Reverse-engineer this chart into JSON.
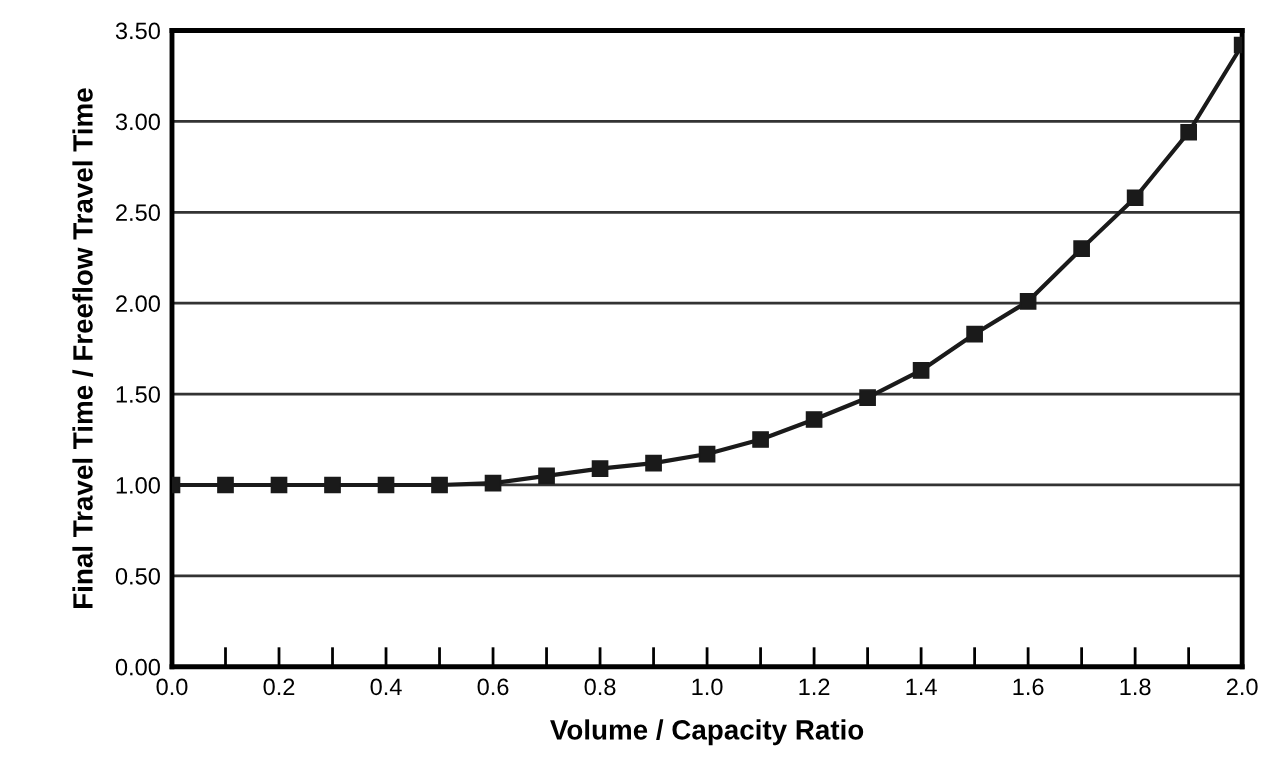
{
  "chart_data": {
    "type": "line",
    "xlabel": "Volume / Capacity Ratio",
    "ylabel": "Final Travel Time / Freeflow Travel Time",
    "x": [
      0.0,
      0.1,
      0.2,
      0.3,
      0.4,
      0.5,
      0.6,
      0.7,
      0.8,
      0.9,
      1.0,
      1.1,
      1.2,
      1.3,
      1.4,
      1.5,
      1.6,
      1.7,
      1.8,
      1.9,
      2.0
    ],
    "series": [
      {
        "color": "#1a1a1a",
        "values": [
          1.0,
          1.0,
          1.0,
          1.0,
          1.0,
          1.0,
          1.01,
          1.05,
          1.09,
          1.12,
          1.17,
          1.25,
          1.36,
          1.48,
          1.63,
          1.83,
          2.01,
          2.3,
          2.58,
          2.94,
          3.42
        ]
      }
    ],
    "xlim": [
      0.0,
      2.0
    ],
    "ylim": [
      0.0,
      3.5
    ],
    "xticks": [
      {
        "value": 0.0,
        "label": "0.0"
      },
      {
        "value": 0.2,
        "label": "0.2"
      },
      {
        "value": 0.4,
        "label": "0.4"
      },
      {
        "value": 0.6,
        "label": "0.6"
      },
      {
        "value": 0.8,
        "label": "0.8"
      },
      {
        "value": 1.0,
        "label": "1.0"
      },
      {
        "value": 1.2,
        "label": "1.2"
      },
      {
        "value": 1.4,
        "label": "1.4"
      },
      {
        "value": 1.6,
        "label": "1.6"
      },
      {
        "value": 1.8,
        "label": "1.8"
      },
      {
        "value": 2.0,
        "label": "2.0"
      }
    ],
    "yticks": [
      {
        "value": 0.0,
        "label": "0.00"
      },
      {
        "value": 0.5,
        "label": "0.50"
      },
      {
        "value": 1.0,
        "label": "1.00"
      },
      {
        "value": 1.5,
        "label": "1.50"
      },
      {
        "value": 2.0,
        "label": "2.00"
      },
      {
        "value": 2.5,
        "label": "2.50"
      },
      {
        "value": 3.0,
        "label": "3.00"
      },
      {
        "value": 3.5,
        "label": "3.50"
      }
    ],
    "grid": "y",
    "marker": "square",
    "line_style": "solid",
    "legend": false
  }
}
